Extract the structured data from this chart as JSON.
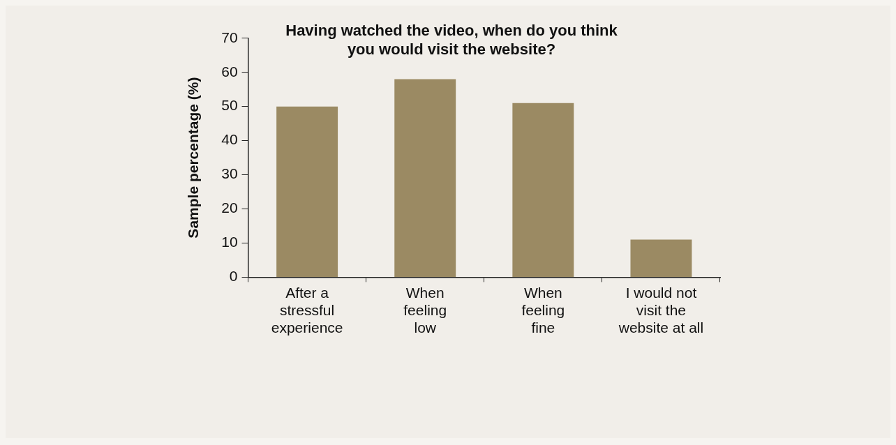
{
  "chart_data": {
    "type": "bar",
    "title": "Having watched the video, when do you think\nyou would visit the website?",
    "ylabel": "Sample percentage (%)",
    "categories": [
      "After a\nstressful\nexperience",
      "When\nfeeling\nlow",
      "When\nfeeling\nfine",
      "I would not\nvisit the\nwebsite at all"
    ],
    "values": [
      50,
      58,
      51,
      11
    ],
    "color": "#9b8a63",
    "ylim": [
      0,
      70
    ],
    "yticks": [
      0,
      10,
      20,
      30,
      40,
      50,
      60,
      70
    ],
    "grid": false,
    "legend": false
  }
}
